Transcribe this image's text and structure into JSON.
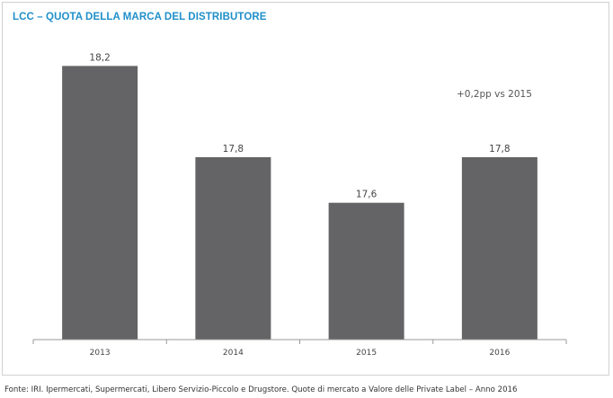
{
  "chart_data": {
    "type": "bar",
    "title": "LCC – QUOTA DELLA MARCA DEL DISTRIBUTORE",
    "categories": [
      "2013",
      "2014",
      "2015",
      "2016"
    ],
    "values": [
      18.2,
      17.8,
      17.6,
      17.8
    ],
    "value_labels": [
      "18,2",
      "17,8",
      "17,6",
      "17,8"
    ],
    "annotation": "+0,2pp vs 2015",
    "ylim": [
      17.0,
      18.3
    ],
    "grid": false,
    "legend": "none",
    "bar_color": "#646466",
    "title_color": "#1f8fc9"
  },
  "footer": {
    "source": "Fonte: IRI. Ipermercati, Supermercati, Libero Servizio-Piccolo e Drugstore. Quote di mercato a Valore delle Private Label – Anno  2016"
  }
}
